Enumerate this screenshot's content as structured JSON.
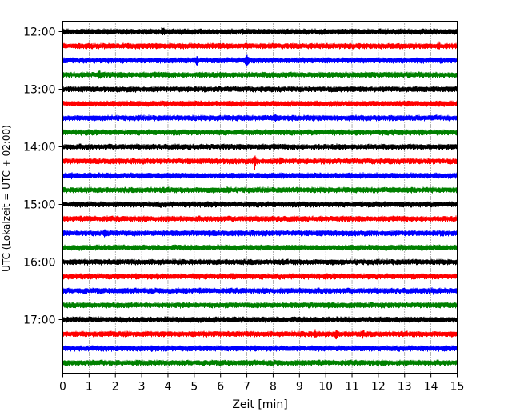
{
  "chart_data": {
    "type": "line",
    "title": "",
    "xlabel": "Zeit  [min]",
    "ylabel": "UTC (Lokalzeit = UTC + 02:00)",
    "xlim": [
      0,
      15
    ],
    "x_ticks": [
      0,
      1,
      2,
      3,
      4,
      5,
      6,
      7,
      8,
      9,
      10,
      11,
      12,
      13,
      14,
      15
    ],
    "y_ticks": [
      "12:00",
      "13:00",
      "14:00",
      "15:00",
      "16:00",
      "17:00"
    ],
    "grid": "vertical dotted at each minute",
    "minutes_per_trace": 15,
    "trace_start_times": [
      "12:00",
      "12:15",
      "12:30",
      "12:45",
      "13:00",
      "13:15",
      "13:30",
      "13:45",
      "14:00",
      "14:15",
      "14:30",
      "14:45",
      "15:00",
      "15:15",
      "15:30",
      "15:45",
      "16:00",
      "16:15",
      "16:30",
      "16:45",
      "17:00",
      "17:15",
      "17:30",
      "17:45"
    ],
    "trace_colors": [
      "#000000",
      "#ff0000",
      "#0000ff",
      "#008000"
    ],
    "bursts": [
      {
        "trace": 0,
        "minute": 3.8,
        "amp": 2.2
      },
      {
        "trace": 1,
        "minute": 14.3,
        "amp": 1.6
      },
      {
        "trace": 2,
        "minute": 5.1,
        "amp": 2.0
      },
      {
        "trace": 2,
        "minute": 7.0,
        "amp": 2.6
      },
      {
        "trace": 3,
        "minute": 1.4,
        "amp": 2.0
      },
      {
        "trace": 3,
        "minute": 5.3,
        "amp": 1.6
      },
      {
        "trace": 6,
        "minute": 8.1,
        "amp": 1.6
      },
      {
        "trace": 9,
        "minute": 7.3,
        "amp": 2.8
      },
      {
        "trace": 9,
        "minute": 8.3,
        "amp": 1.8
      },
      {
        "trace": 10,
        "minute": 0.3,
        "amp": 1.4
      },
      {
        "trace": 11,
        "minute": 6.3,
        "amp": 1.5
      },
      {
        "trace": 14,
        "minute": 1.6,
        "amp": 2.0
      },
      {
        "trace": 17,
        "minute": 6.4,
        "amp": 1.4
      },
      {
        "trace": 18,
        "minute": 14.1,
        "amp": 1.4
      },
      {
        "trace": 21,
        "minute": 9.6,
        "amp": 1.9
      },
      {
        "trace": 21,
        "minute": 10.4,
        "amp": 2.0
      },
      {
        "trace": 21,
        "minute": 11.4,
        "amp": 1.6
      },
      {
        "trace": 22,
        "minute": 3.4,
        "amp": 1.4
      }
    ]
  }
}
